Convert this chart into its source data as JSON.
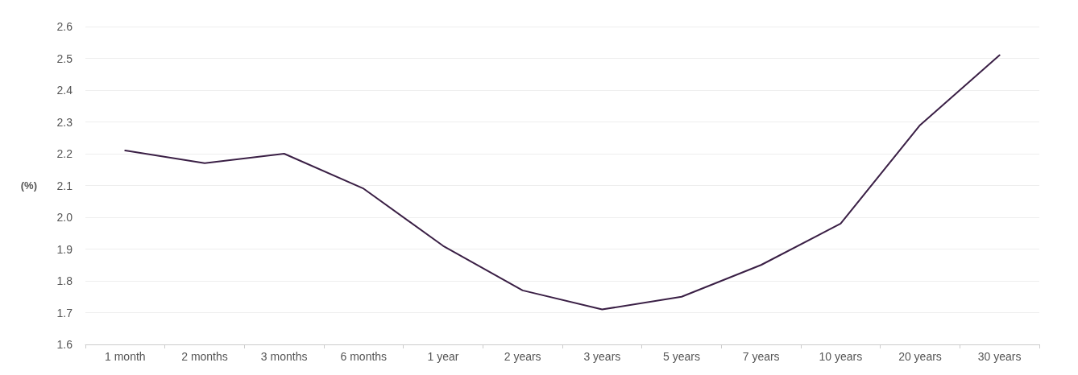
{
  "chart_data": {
    "type": "line",
    "ylabel": "(%)",
    "categories": [
      "1 month",
      "2 months",
      "3 months",
      "6 months",
      "1 year",
      "2 years",
      "3 years",
      "5 years",
      "7 years",
      "10 years",
      "20 years",
      "30 years"
    ],
    "series": [
      {
        "color": "#3a1f45",
        "values": [
          2.21,
          2.17,
          2.2,
          2.09,
          1.91,
          1.77,
          1.71,
          1.75,
          1.85,
          1.98,
          2.29,
          2.51
        ]
      }
    ],
    "ylim": [
      1.6,
      2.6
    ],
    "yticks": [
      1.6,
      1.7,
      1.8,
      1.9,
      {
        "value": 2,
        "label": "2.0"
      },
      2.1,
      2.2,
      2.3,
      2.4,
      2.5,
      2.6
    ],
    "grid": "y",
    "marker": "none",
    "line_style": "solid"
  }
}
